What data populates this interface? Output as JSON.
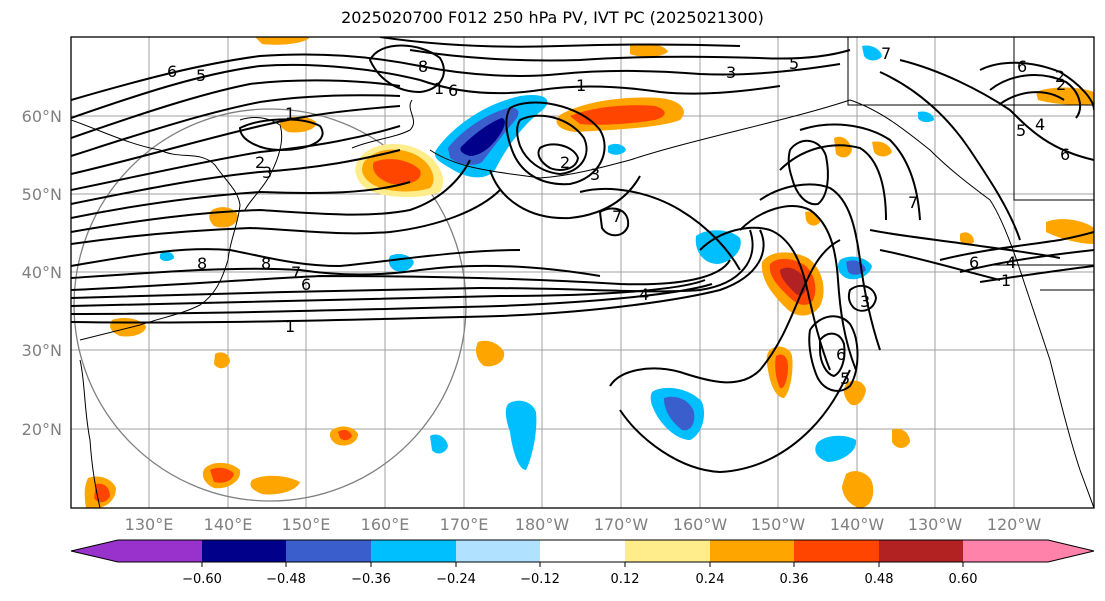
{
  "title": "2025020700 F012 250 hPa PV, IVT PC (2025021300)",
  "axes": {
    "lat_labels": [
      "60°N",
      "50°N",
      "40°N",
      "30°N",
      "20°N"
    ],
    "lon_labels": [
      "130°E",
      "140°E",
      "150°E",
      "160°E",
      "170°E",
      "180°W",
      "170°W",
      "160°W",
      "150°W",
      "140°W",
      "130°W",
      "120°W"
    ]
  },
  "contour_labels": [
    "6",
    "5",
    "8",
    "1",
    "6",
    "1",
    "3",
    "5",
    "7",
    "2",
    "1",
    "2",
    "3",
    "2",
    "3",
    "7",
    "8",
    "8",
    "7",
    "6",
    "4",
    "1",
    "6",
    "3",
    "7",
    "6",
    "4",
    "1",
    "2",
    "5",
    "4",
    "6",
    "6",
    "5"
  ],
  "colorbar": {
    "tick_labels": [
      "−0.60",
      "−0.48",
      "−0.36",
      "−0.24",
      "−0.12",
      "0.12",
      "0.24",
      "0.36",
      "0.48",
      "0.60"
    ],
    "colors": [
      "#9932cc",
      "#00008b",
      "#3a5fcd",
      "#00bfff",
      "#b0e2ff",
      "#ffffff",
      "#ffec8b",
      "#ffa500",
      "#ff4500",
      "#b22222",
      "#ff82ab"
    ]
  }
}
